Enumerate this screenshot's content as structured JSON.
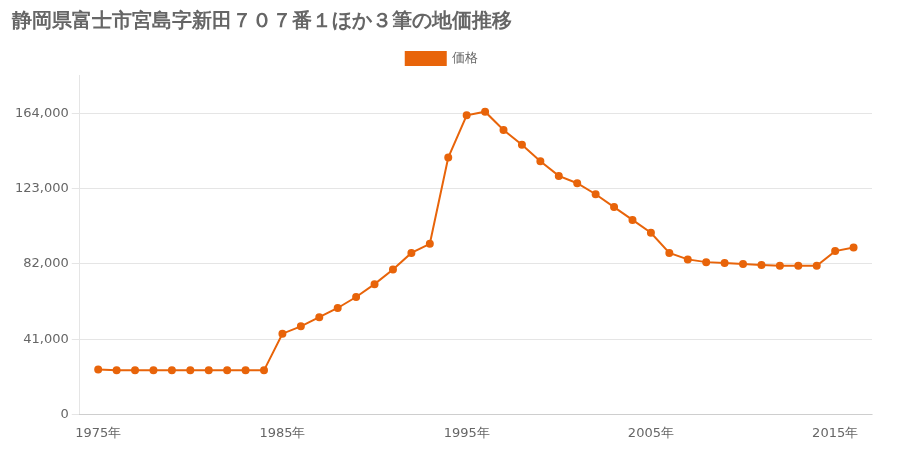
{
  "chart_data": {
    "type": "line",
    "title": "静岡県富士市宮島字新田７０７番１ほか３筆の地価推移",
    "x": [
      1975,
      1976,
      1977,
      1978,
      1979,
      1980,
      1981,
      1982,
      1983,
      1984,
      1985,
      1986,
      1987,
      1988,
      1989,
      1990,
      1991,
      1992,
      1993,
      1994,
      1995,
      1996,
      1997,
      1998,
      1999,
      2000,
      2001,
      2002,
      2003,
      2004,
      2005,
      2006,
      2007,
      2008,
      2009,
      2010,
      2011,
      2012,
      2013,
      2014,
      2015,
      2016
    ],
    "series": [
      {
        "name": "価格",
        "color": "#E8640A",
        "marker": "circle",
        "values": [
          24500,
          24000,
          24000,
          24000,
          24000,
          24000,
          24000,
          24000,
          24000,
          24000,
          44000,
          48000,
          53000,
          58000,
          64000,
          71000,
          79000,
          88000,
          93000,
          140000,
          163000,
          165000,
          155000,
          147000,
          138000,
          130000,
          126000,
          120000,
          113000,
          106000,
          99000,
          88000,
          84500,
          83000,
          82500,
          82000,
          81500,
          81000,
          81000,
          81000,
          89000,
          91000
        ]
      }
    ],
    "xlim": [
      1974,
      2017
    ],
    "xticks": [
      {
        "value": 1975,
        "label": "1975年"
      },
      {
        "value": 1985,
        "label": "1985年"
      },
      {
        "value": 1995,
        "label": "1995年"
      },
      {
        "value": 2005,
        "label": "2005年"
      },
      {
        "value": 2015,
        "label": "2015年"
      }
    ],
    "ylim": [
      0,
      185000
    ],
    "yticks": [
      0,
      {
        "value": 41000,
        "label": "41,000"
      },
      {
        "value": 82000,
        "label": "82,000"
      },
      {
        "value": 123000,
        "label": "123,000"
      },
      {
        "value": 164000,
        "label": "164,000"
      }
    ],
    "grid": "y",
    "legend": "top"
  }
}
